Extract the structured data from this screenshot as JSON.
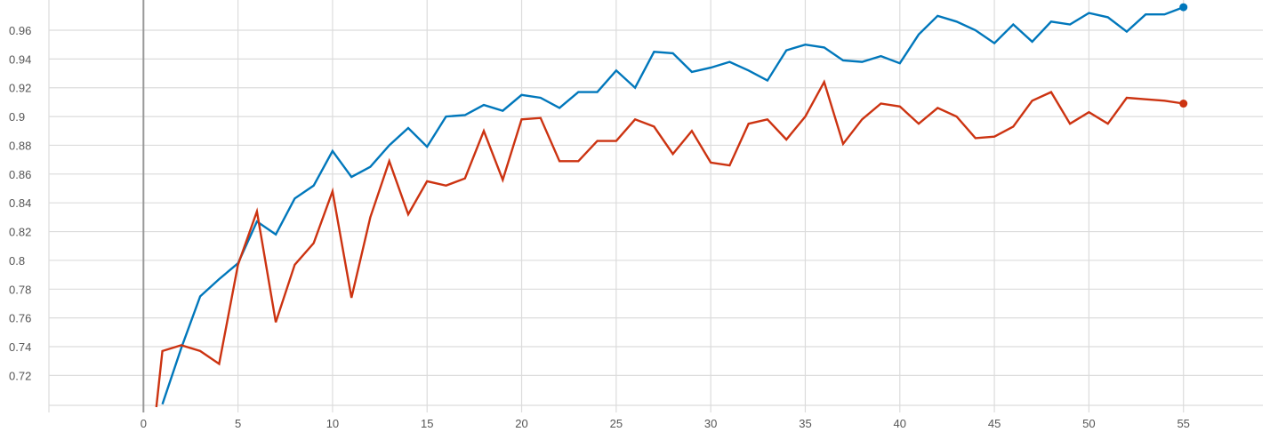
{
  "chart_data": {
    "type": "line",
    "title": "",
    "xlabel": "",
    "ylabel": "",
    "xlim": [
      -5,
      59.2
    ],
    "ylim": [
      0.698,
      0.981
    ],
    "grid": true,
    "x_ticks": [
      "0",
      "5",
      "10",
      "15",
      "20",
      "25",
      "30",
      "35",
      "40",
      "45",
      "50",
      "55"
    ],
    "y_ticks": [
      "0.72",
      "0.74",
      "0.76",
      "0.78",
      "0.8",
      "0.82",
      "0.84",
      "0.86",
      "0.88",
      "0.9",
      "0.92",
      "0.94",
      "0.96"
    ],
    "series": [
      {
        "color": "#0077bb",
        "x": [
          1,
          2,
          3,
          4,
          5,
          6,
          7,
          8,
          9,
          10,
          11,
          12,
          13,
          14,
          15,
          16,
          17,
          18,
          19,
          20,
          21,
          22,
          23,
          24,
          25,
          26,
          27,
          28,
          29,
          30,
          31,
          32,
          33,
          34,
          35,
          36,
          37,
          38,
          39,
          40,
          41,
          42,
          43,
          44,
          45,
          46,
          47,
          48,
          49,
          50,
          51,
          52,
          53,
          54,
          55
        ],
        "y": [
          0.7,
          0.739,
          0.775,
          0.787,
          0.798,
          0.827,
          0.818,
          0.843,
          0.852,
          0.876,
          0.858,
          0.865,
          0.88,
          0.892,
          0.879,
          0.9,
          0.901,
          0.908,
          0.904,
          0.915,
          0.913,
          0.906,
          0.917,
          0.917,
          0.932,
          0.92,
          0.945,
          0.944,
          0.931,
          0.934,
          0.938,
          0.932,
          0.925,
          0.946,
          0.95,
          0.948,
          0.939,
          0.938,
          0.942,
          0.937,
          0.957,
          0.97,
          0.966,
          0.96,
          0.951,
          0.964,
          0.952,
          0.966,
          0.964,
          0.972,
          0.969,
          0.959,
          0.971,
          0.971,
          0.976
        ]
      },
      {
        "color": "#cc3311",
        "x": [
          0,
          1,
          2,
          3,
          4,
          5,
          6,
          7,
          8,
          9,
          10,
          11,
          12,
          13,
          14,
          15,
          16,
          17,
          18,
          19,
          20,
          21,
          22,
          23,
          24,
          25,
          26,
          27,
          28,
          29,
          30,
          31,
          32,
          33,
          34,
          35,
          36,
          37,
          38,
          39,
          40,
          41,
          42,
          43,
          44,
          45,
          46,
          47,
          48,
          49,
          50,
          51,
          52,
          53,
          54,
          55
        ],
        "y": [
          0.614,
          0.737,
          0.741,
          0.737,
          0.728,
          0.797,
          0.834,
          0.757,
          0.797,
          0.812,
          0.848,
          0.774,
          0.83,
          0.869,
          0.832,
          0.855,
          0.852,
          0.857,
          0.89,
          0.856,
          0.898,
          0.899,
          0.869,
          0.869,
          0.883,
          0.883,
          0.898,
          0.893,
          0.874,
          0.89,
          0.868,
          0.866,
          0.895,
          0.898,
          0.884,
          0.9,
          0.924,
          0.881,
          0.898,
          0.909,
          0.907,
          0.895,
          0.906,
          0.9,
          0.885,
          0.886,
          0.893,
          0.911,
          0.917,
          0.895,
          0.903,
          0.895,
          0.913,
          0.912,
          0.911,
          0.909
        ]
      }
    ]
  }
}
